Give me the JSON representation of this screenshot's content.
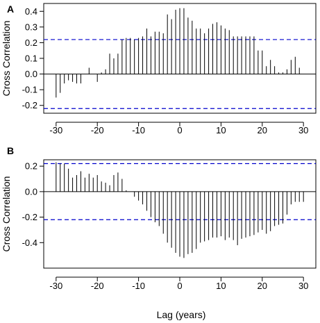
{
  "figure": {
    "xlabel": "Lag (years)"
  },
  "chart_data": [
    {
      "type": "bar",
      "panel_label": "A",
      "title": "",
      "xlabel": "",
      "ylabel": "Cross Correlation",
      "xlim": [
        -33,
        33
      ],
      "ylim": [
        -0.25,
        0.45
      ],
      "xticks": [
        -30,
        -20,
        -10,
        0,
        10,
        20,
        30
      ],
      "yticks": [
        -0.2,
        -0.1,
        0.0,
        0.1,
        0.2,
        0.3,
        0.4
      ],
      "ytick_labels": [
        "-0.2",
        "-0.1",
        "0.0",
        "0.1",
        "0.2",
        "0.3",
        "0.4"
      ],
      "confidence_band": [
        -0.22,
        0.22
      ],
      "confidence_color": "#0000cc",
      "x": [
        -30,
        -29,
        -28,
        -27,
        -26,
        -25,
        -24,
        -23,
        -22,
        -21,
        -20,
        -19,
        -18,
        -17,
        -16,
        -15,
        -14,
        -13,
        -12,
        -11,
        -10,
        -9,
        -8,
        -7,
        -6,
        -5,
        -4,
        -3,
        -2,
        -1,
        0,
        1,
        2,
        3,
        4,
        5,
        6,
        7,
        8,
        9,
        10,
        11,
        12,
        13,
        14,
        15,
        16,
        17,
        18,
        19,
        20,
        21,
        22,
        23,
        24,
        25,
        26,
        27,
        28,
        29,
        30
      ],
      "values": [
        -0.15,
        -0.12,
        -0.06,
        -0.04,
        -0.05,
        -0.06,
        -0.06,
        0.0,
        0.04,
        0.0,
        -0.05,
        0.01,
        0.03,
        0.13,
        0.1,
        0.13,
        0.22,
        0.23,
        0.23,
        0.22,
        0.23,
        0.24,
        0.29,
        0.24,
        0.27,
        0.27,
        0.26,
        0.38,
        0.35,
        0.41,
        0.42,
        0.42,
        0.36,
        0.34,
        0.29,
        0.29,
        0.26,
        0.29,
        0.32,
        0.33,
        0.31,
        0.29,
        0.28,
        0.24,
        0.24,
        0.24,
        0.24,
        0.24,
        0.24,
        0.15,
        0.15,
        0.05,
        0.09,
        0.05,
        0.01,
        0.01,
        0.03,
        0.09,
        0.11,
        0.04,
        0.0
      ]
    },
    {
      "type": "bar",
      "panel_label": "B",
      "title": "",
      "xlabel": "Lag (years)",
      "ylabel": "Cross Correlation",
      "xlim": [
        -33,
        33
      ],
      "ylim": [
        -0.6,
        0.25
      ],
      "xticks": [
        -30,
        -20,
        -10,
        0,
        10,
        20,
        30
      ],
      "yticks": [
        -0.4,
        -0.2,
        0.0,
        0.2
      ],
      "ytick_labels": [
        "-0.4",
        "-0.2",
        "0.0",
        "0.2"
      ],
      "confidence_band": [
        -0.22,
        0.22
      ],
      "confidence_color": "#0000cc",
      "x": [
        -30,
        -29,
        -28,
        -27,
        -26,
        -25,
        -24,
        -23,
        -22,
        -21,
        -20,
        -19,
        -18,
        -17,
        -16,
        -15,
        -14,
        -13,
        -12,
        -11,
        -10,
        -9,
        -8,
        -7,
        -6,
        -5,
        -4,
        -3,
        -2,
        -1,
        0,
        1,
        2,
        3,
        4,
        5,
        6,
        7,
        8,
        9,
        10,
        11,
        12,
        13,
        14,
        15,
        16,
        17,
        18,
        19,
        20,
        21,
        22,
        23,
        24,
        25,
        26,
        27,
        28,
        29,
        30
      ],
      "values": [
        0.23,
        0.22,
        0.22,
        0.18,
        0.11,
        0.13,
        0.16,
        0.11,
        0.14,
        0.11,
        0.13,
        0.08,
        0.07,
        0.05,
        0.13,
        0.15,
        0.1,
        0.01,
        0.0,
        -0.04,
        -0.07,
        -0.1,
        -0.15,
        -0.2,
        -0.24,
        -0.27,
        -0.33,
        -0.4,
        -0.44,
        -0.48,
        -0.51,
        -0.52,
        -0.49,
        -0.48,
        -0.45,
        -0.4,
        -0.39,
        -0.38,
        -0.36,
        -0.36,
        -0.35,
        -0.38,
        -0.36,
        -0.38,
        -0.42,
        -0.37,
        -0.36,
        -0.35,
        -0.34,
        -0.32,
        -0.3,
        -0.33,
        -0.31,
        -0.27,
        -0.26,
        -0.25,
        -0.18,
        -0.1,
        -0.08,
        -0.08,
        -0.08
      ]
    }
  ]
}
